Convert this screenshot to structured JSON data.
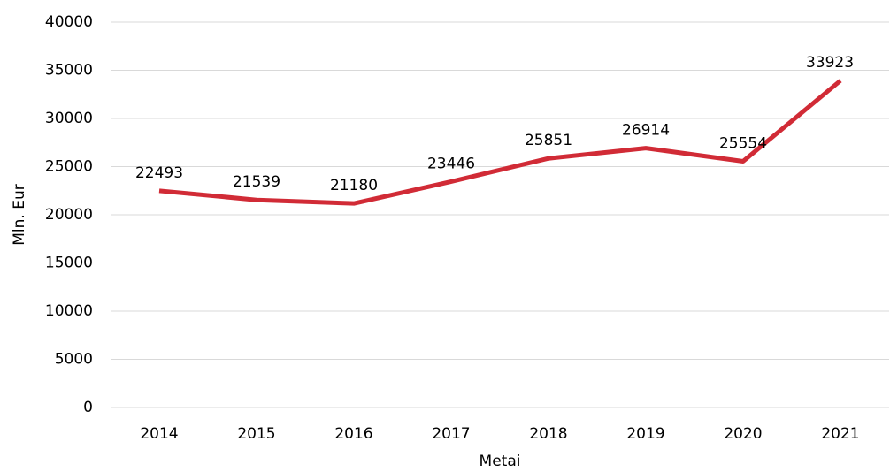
{
  "chart_data": {
    "type": "line",
    "categories": [
      "2014",
      "2015",
      "2016",
      "2017",
      "2018",
      "2019",
      "2020",
      "2021"
    ],
    "series": [
      {
        "name": "Mln. Eur",
        "color": "#d12b36",
        "values": [
          22493,
          21539,
          21180,
          23446,
          25851,
          26914,
          25554,
          33923
        ]
      }
    ],
    "y_label": "Mln. Eur",
    "x_label": "Metai",
    "ylim": [
      0,
      40000
    ],
    "yticks": [
      0,
      5000,
      10000,
      15000,
      20000,
      25000,
      30000,
      35000,
      40000
    ],
    "grid": true
  }
}
